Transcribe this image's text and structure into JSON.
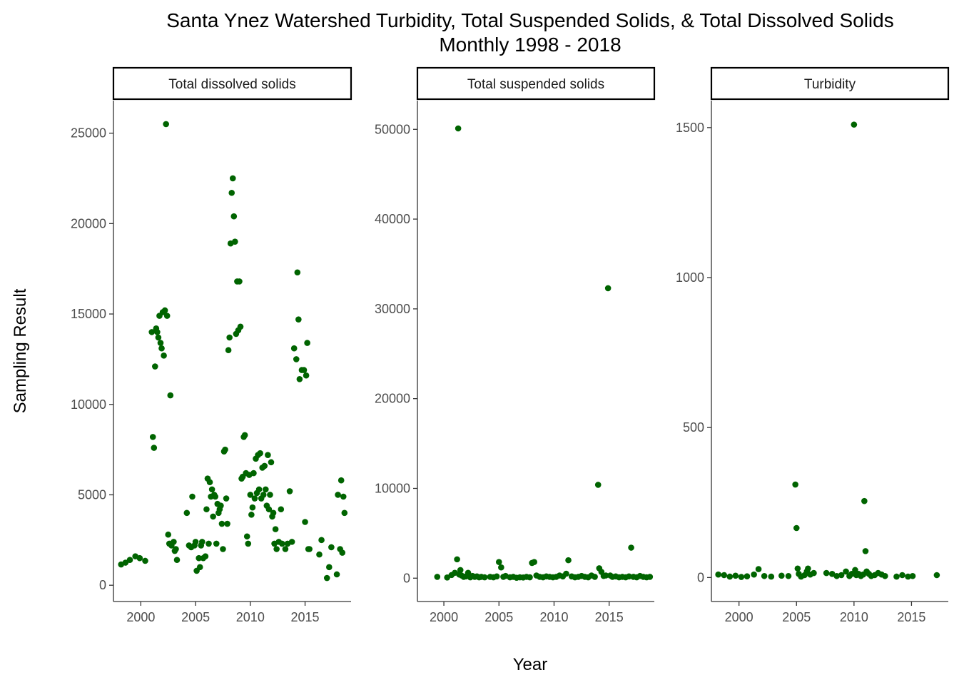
{
  "chart_data": {
    "type": "scatter",
    "title": "Santa Ynez Watershed Turbidity, Total Suspended Solids, & Total Dissolved Solids",
    "subtitle": "Monthly 1998 - 2018",
    "xlabel": "Year",
    "ylabel": "Sampling Result",
    "point_color": "#006400",
    "grid": false,
    "legend": "none",
    "facets": [
      {
        "name": "Total dissolved solids",
        "xlim": [
          1997.5,
          2019.2
        ],
        "ylim": [
          -900,
          26800
        ],
        "x_ticks": [
          2000,
          2005,
          2010,
          2015
        ],
        "y_ticks": [
          0,
          5000,
          10000,
          15000,
          20000,
          25000
        ],
        "points": [
          [
            1998.2,
            1150
          ],
          [
            1998.6,
            1250
          ],
          [
            1999.0,
            1400
          ],
          [
            1999.5,
            1600
          ],
          [
            1999.9,
            1500
          ],
          [
            2000.4,
            1350
          ],
          [
            2001.0,
            14000
          ],
          [
            2001.1,
            8200
          ],
          [
            2001.2,
            7600
          ],
          [
            2001.3,
            12100
          ],
          [
            2001.4,
            14200
          ],
          [
            2001.5,
            14000
          ],
          [
            2001.6,
            13700
          ],
          [
            2001.7,
            14900
          ],
          [
            2001.8,
            13400
          ],
          [
            2001.9,
            13100
          ],
          [
            2002.0,
            15100
          ],
          [
            2002.1,
            12700
          ],
          [
            2002.2,
            15200
          ],
          [
            2002.3,
            25500
          ],
          [
            2002.4,
            14900
          ],
          [
            2002.5,
            2800
          ],
          [
            2002.6,
            2300
          ],
          [
            2002.7,
            10500
          ],
          [
            2002.8,
            2200
          ],
          [
            2003.0,
            2400
          ],
          [
            2003.1,
            1900
          ],
          [
            2003.2,
            2000
          ],
          [
            2003.3,
            1400
          ],
          [
            2004.2,
            4000
          ],
          [
            2004.4,
            2200
          ],
          [
            2004.6,
            2100
          ],
          [
            2004.7,
            4900
          ],
          [
            2004.9,
            2200
          ],
          [
            2005.0,
            2400
          ],
          [
            2005.1,
            800
          ],
          [
            2005.3,
            1500
          ],
          [
            2005.4,
            1000
          ],
          [
            2005.5,
            2200
          ],
          [
            2005.6,
            2400
          ],
          [
            2005.7,
            1500
          ],
          [
            2005.9,
            1600
          ],
          [
            2006.0,
            4200
          ],
          [
            2006.1,
            5900
          ],
          [
            2006.2,
            2300
          ],
          [
            2006.3,
            5700
          ],
          [
            2006.4,
            4900
          ],
          [
            2006.5,
            5300
          ],
          [
            2006.6,
            3800
          ],
          [
            2006.7,
            5000
          ],
          [
            2006.8,
            4900
          ],
          [
            2006.9,
            2300
          ],
          [
            2007.0,
            4500
          ],
          [
            2007.1,
            4000
          ],
          [
            2007.2,
            4200
          ],
          [
            2007.3,
            4400
          ],
          [
            2007.4,
            3400
          ],
          [
            2007.5,
            2000
          ],
          [
            2007.6,
            7400
          ],
          [
            2007.7,
            7500
          ],
          [
            2007.8,
            4800
          ],
          [
            2007.9,
            3400
          ],
          [
            2008.0,
            13000
          ],
          [
            2008.1,
            13700
          ],
          [
            2008.2,
            18900
          ],
          [
            2008.3,
            21700
          ],
          [
            2008.4,
            22500
          ],
          [
            2008.5,
            20400
          ],
          [
            2008.6,
            19000
          ],
          [
            2008.7,
            13900
          ],
          [
            2008.8,
            16800
          ],
          [
            2008.9,
            14100
          ],
          [
            2009.0,
            16800
          ],
          [
            2009.1,
            14300
          ],
          [
            2009.2,
            5900
          ],
          [
            2009.3,
            6000
          ],
          [
            2009.4,
            8200
          ],
          [
            2009.5,
            8300
          ],
          [
            2009.6,
            6200
          ],
          [
            2009.7,
            2700
          ],
          [
            2009.8,
            2300
          ],
          [
            2009.9,
            6100
          ],
          [
            2010.0,
            5000
          ],
          [
            2010.1,
            3900
          ],
          [
            2010.2,
            4300
          ],
          [
            2010.3,
            6200
          ],
          [
            2010.4,
            4800
          ],
          [
            2010.5,
            7000
          ],
          [
            2010.6,
            5100
          ],
          [
            2010.7,
            7200
          ],
          [
            2010.8,
            5300
          ],
          [
            2010.9,
            7300
          ],
          [
            2011.0,
            4800
          ],
          [
            2011.1,
            6500
          ],
          [
            2011.2,
            5000
          ],
          [
            2011.3,
            6600
          ],
          [
            2011.4,
            5300
          ],
          [
            2011.5,
            4400
          ],
          [
            2011.6,
            7200
          ],
          [
            2011.7,
            4200
          ],
          [
            2011.8,
            5000
          ],
          [
            2011.9,
            6800
          ],
          [
            2012.0,
            3800
          ],
          [
            2012.1,
            4000
          ],
          [
            2012.2,
            2300
          ],
          [
            2012.3,
            3100
          ],
          [
            2012.4,
            2000
          ],
          [
            2012.6,
            2400
          ],
          [
            2012.8,
            4200
          ],
          [
            2012.9,
            2300
          ],
          [
            2013.2,
            2000
          ],
          [
            2013.4,
            2300
          ],
          [
            2013.6,
            5200
          ],
          [
            2013.8,
            2400
          ],
          [
            2014.0,
            13100
          ],
          [
            2014.2,
            12500
          ],
          [
            2014.3,
            17300
          ],
          [
            2014.4,
            14700
          ],
          [
            2014.5,
            11400
          ],
          [
            2014.7,
            11900
          ],
          [
            2014.9,
            11900
          ],
          [
            2015.0,
            3500
          ],
          [
            2015.1,
            11600
          ],
          [
            2015.2,
            13400
          ],
          [
            2015.3,
            2000
          ],
          [
            2015.4,
            2000
          ],
          [
            2016.3,
            1700
          ],
          [
            2016.5,
            2500
          ],
          [
            2017.0,
            400
          ],
          [
            2017.2,
            1000
          ],
          [
            2017.4,
            2100
          ],
          [
            2017.9,
            600
          ],
          [
            2018.0,
            5000
          ],
          [
            2018.2,
            2000
          ],
          [
            2018.3,
            5800
          ],
          [
            2018.4,
            1800
          ],
          [
            2018.5,
            4900
          ],
          [
            2018.6,
            4000
          ]
        ]
      },
      {
        "name": "Total suspended solids",
        "xlim": [
          1997.6,
          2019.1
        ],
        "ylim": [
          -2600,
          53200
        ],
        "x_ticks": [
          2000,
          2005,
          2010,
          2015
        ],
        "y_ticks": [
          0,
          10000,
          20000,
          30000,
          40000,
          50000
        ],
        "points": [
          [
            1999.4,
            150
          ],
          [
            2000.3,
            80
          ],
          [
            2000.7,
            350
          ],
          [
            2001.0,
            600
          ],
          [
            2001.2,
            2100
          ],
          [
            2001.3,
            50100
          ],
          [
            2001.4,
            400
          ],
          [
            2001.5,
            900
          ],
          [
            2001.6,
            300
          ],
          [
            2001.8,
            150
          ],
          [
            2002.0,
            200
          ],
          [
            2002.2,
            600
          ],
          [
            2002.4,
            100
          ],
          [
            2002.6,
            250
          ],
          [
            2002.8,
            150
          ],
          [
            2003.0,
            200
          ],
          [
            2003.2,
            100
          ],
          [
            2003.4,
            150
          ],
          [
            2003.7,
            100
          ],
          [
            2004.2,
            150
          ],
          [
            2004.5,
            100
          ],
          [
            2004.8,
            200
          ],
          [
            2005.0,
            1800
          ],
          [
            2005.2,
            1200
          ],
          [
            2005.4,
            150
          ],
          [
            2005.6,
            250
          ],
          [
            2006.0,
            100
          ],
          [
            2006.3,
            150
          ],
          [
            2006.6,
            50
          ],
          [
            2006.9,
            100
          ],
          [
            2007.2,
            80
          ],
          [
            2007.5,
            150
          ],
          [
            2007.8,
            100
          ],
          [
            2008.0,
            1700
          ],
          [
            2008.2,
            1800
          ],
          [
            2008.4,
            300
          ],
          [
            2008.7,
            150
          ],
          [
            2009.0,
            100
          ],
          [
            2009.3,
            200
          ],
          [
            2009.6,
            150
          ],
          [
            2009.9,
            100
          ],
          [
            2010.2,
            150
          ],
          [
            2010.5,
            300
          ],
          [
            2010.8,
            200
          ],
          [
            2011.1,
            500
          ],
          [
            2011.3,
            2000
          ],
          [
            2011.6,
            200
          ],
          [
            2011.9,
            100
          ],
          [
            2012.2,
            150
          ],
          [
            2012.5,
            250
          ],
          [
            2012.8,
            150
          ],
          [
            2013.1,
            100
          ],
          [
            2013.4,
            300
          ],
          [
            2013.7,
            150
          ],
          [
            2014.0,
            10400
          ],
          [
            2014.1,
            1100
          ],
          [
            2014.3,
            700
          ],
          [
            2014.5,
            250
          ],
          [
            2014.7,
            300
          ],
          [
            2014.9,
            32300
          ],
          [
            2015.1,
            300
          ],
          [
            2015.3,
            150
          ],
          [
            2015.6,
            200
          ],
          [
            2015.9,
            100
          ],
          [
            2016.2,
            150
          ],
          [
            2016.5,
            100
          ],
          [
            2016.8,
            200
          ],
          [
            2017.0,
            3400
          ],
          [
            2017.2,
            150
          ],
          [
            2017.5,
            100
          ],
          [
            2017.8,
            250
          ],
          [
            2018.1,
            150
          ],
          [
            2018.4,
            100
          ],
          [
            2018.7,
            150
          ]
        ]
      },
      {
        "name": "Turbidity",
        "xlim": [
          1997.6,
          2018.2
        ],
        "ylim": [
          -80,
          1590
        ],
        "x_ticks": [
          2000,
          2005,
          2010,
          2015
        ],
        "y_ticks": [
          0,
          500,
          1000,
          1500
        ],
        "points": [
          [
            1998.2,
            10
          ],
          [
            1998.7,
            8
          ],
          [
            1999.2,
            3
          ],
          [
            1999.7,
            6
          ],
          [
            2000.2,
            2
          ],
          [
            2000.7,
            4
          ],
          [
            2001.3,
            10
          ],
          [
            2001.7,
            28
          ],
          [
            2002.2,
            5
          ],
          [
            2002.8,
            3
          ],
          [
            2003.7,
            6
          ],
          [
            2004.3,
            5
          ],
          [
            2004.9,
            310
          ],
          [
            2005.0,
            165
          ],
          [
            2005.1,
            30
          ],
          [
            2005.2,
            12
          ],
          [
            2005.4,
            3
          ],
          [
            2005.7,
            8
          ],
          [
            2005.9,
            20
          ],
          [
            2006.0,
            30
          ],
          [
            2006.2,
            10
          ],
          [
            2006.5,
            15
          ],
          [
            2007.6,
            15
          ],
          [
            2008.1,
            12
          ],
          [
            2008.5,
            5
          ],
          [
            2008.9,
            8
          ],
          [
            2009.3,
            20
          ],
          [
            2009.6,
            5
          ],
          [
            2009.8,
            12
          ],
          [
            2010.0,
            1510
          ],
          [
            2010.1,
            25
          ],
          [
            2010.2,
            8
          ],
          [
            2010.4,
            12
          ],
          [
            2010.6,
            5
          ],
          [
            2010.8,
            10
          ],
          [
            2010.9,
            255
          ],
          [
            2011.0,
            88
          ],
          [
            2011.1,
            20
          ],
          [
            2011.3,
            12
          ],
          [
            2011.5,
            5
          ],
          [
            2011.8,
            8
          ],
          [
            2012.1,
            15
          ],
          [
            2012.4,
            10
          ],
          [
            2012.7,
            5
          ],
          [
            2013.7,
            3
          ],
          [
            2014.2,
            8
          ],
          [
            2014.7,
            3
          ],
          [
            2015.1,
            5
          ],
          [
            2017.2,
            8
          ]
        ]
      }
    ]
  }
}
